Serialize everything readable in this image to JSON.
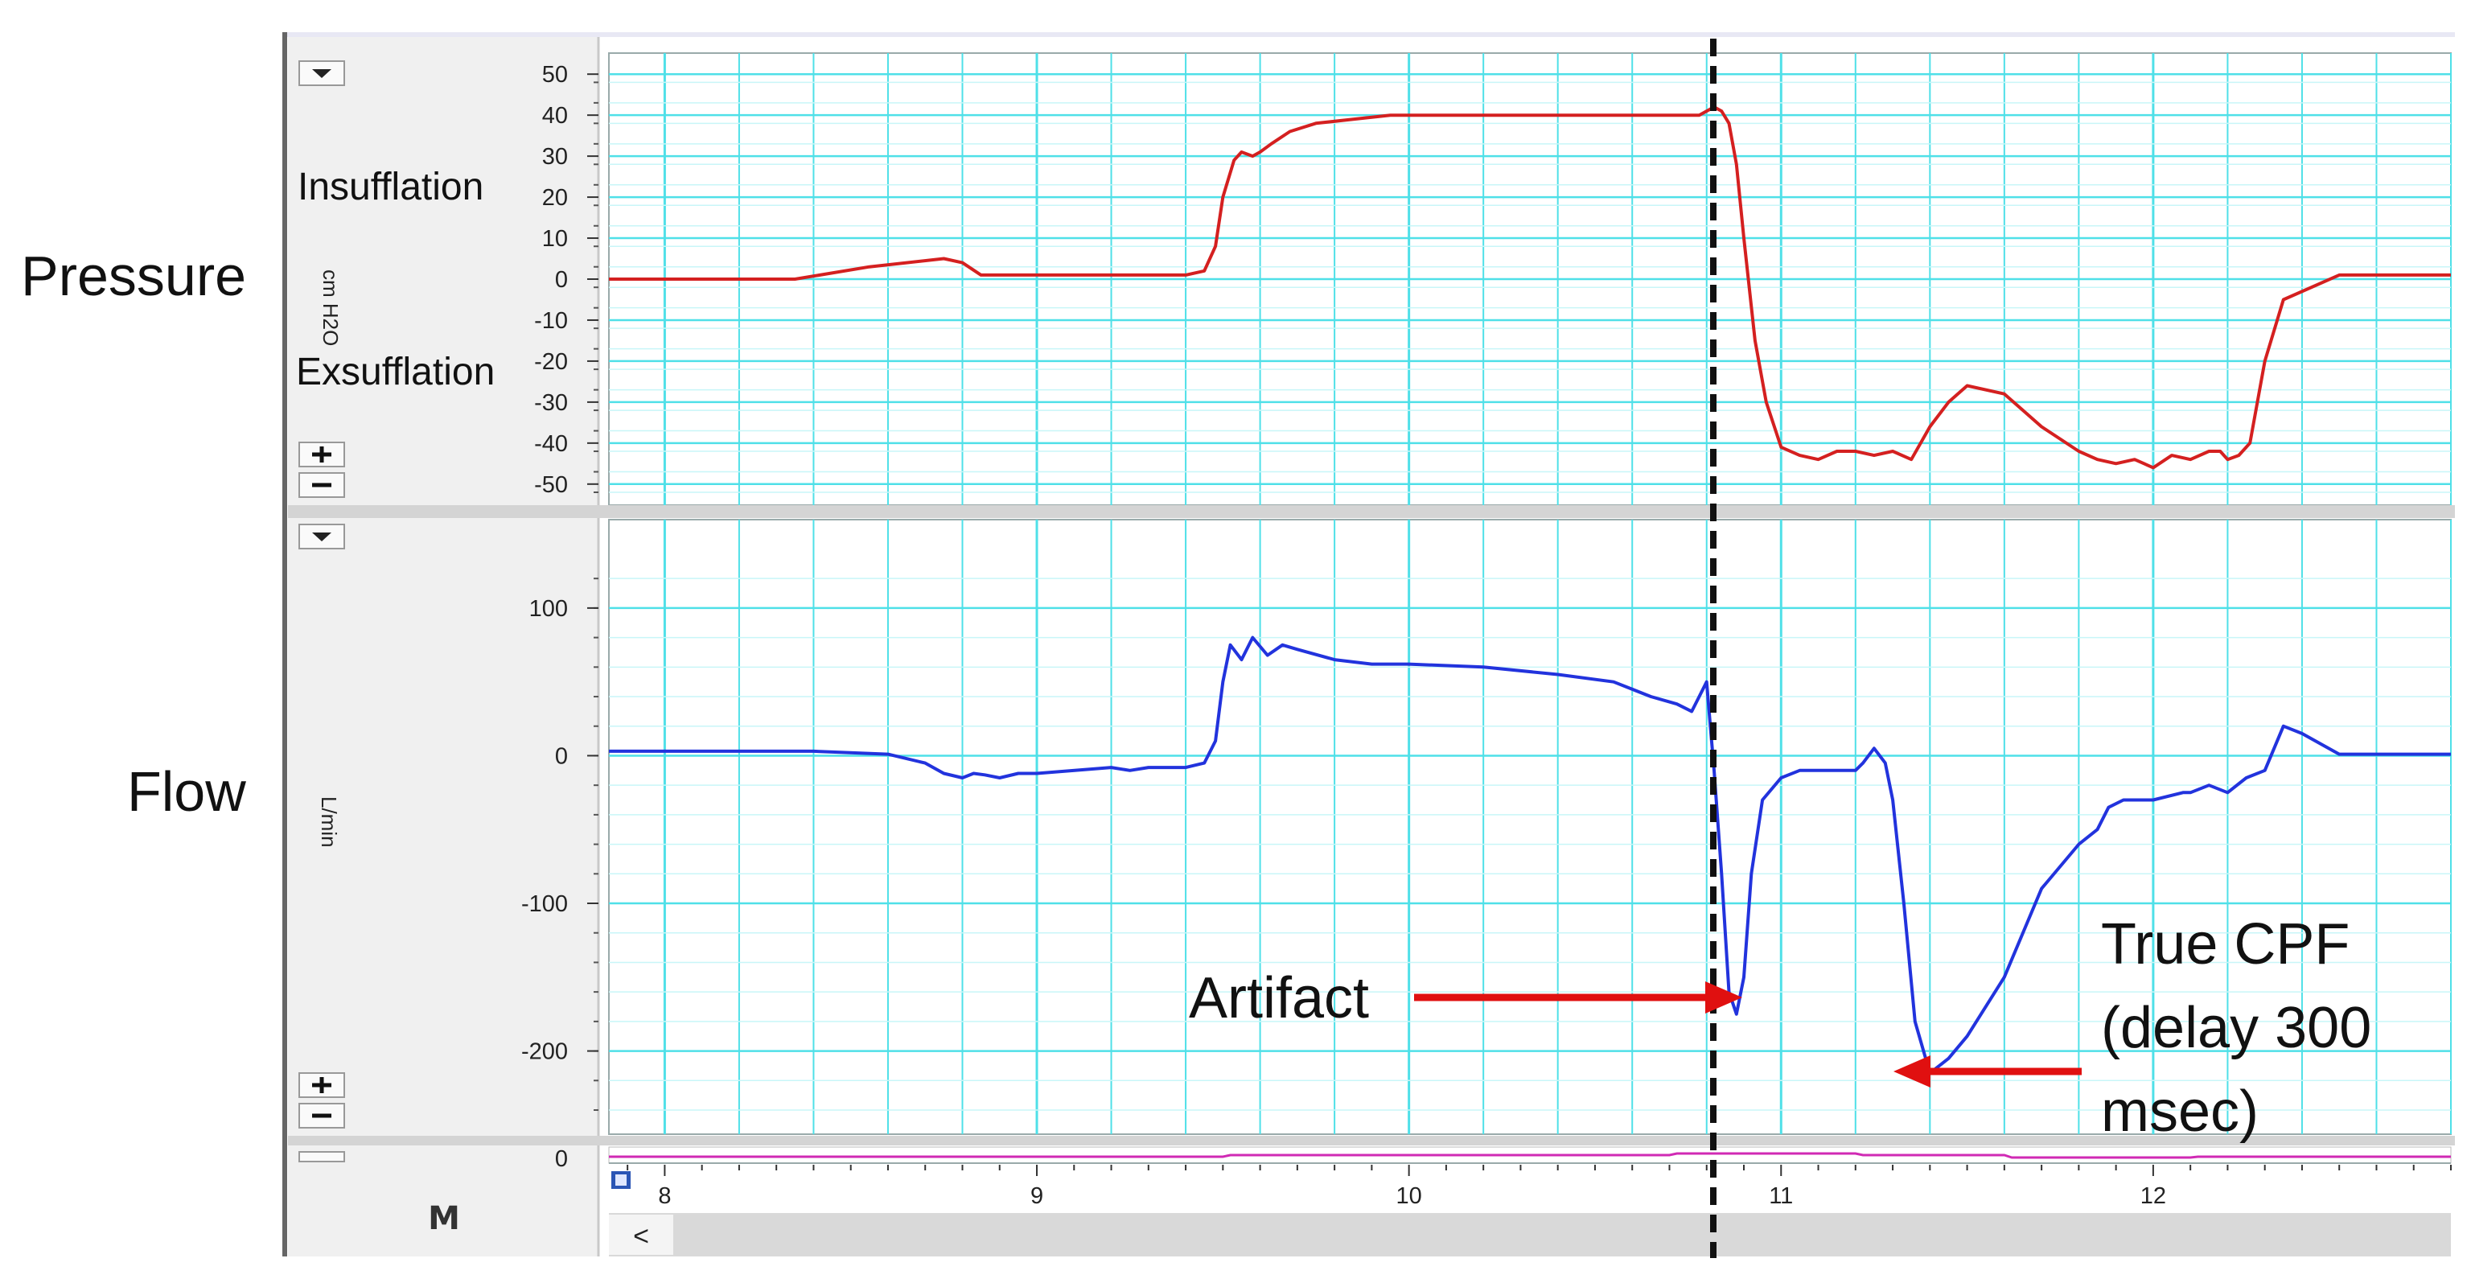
{
  "labels": {
    "pressure": "Pressure",
    "flow": "Flow",
    "insufflation": "Insufflation",
    "exsufflation": "Exsufflation",
    "pressure_unit": "cm H2O",
    "flow_unit": "L/min",
    "artifact": "Artifact",
    "true_cpf": [
      "True CPF",
      "(delay 300",
      "msec)"
    ],
    "bottom_tick": "0",
    "nav_left": "<"
  },
  "icons": {
    "dropdown": "dropdown-triangle-icon",
    "zoom_in": "plus-icon",
    "zoom_out": "minus-icon",
    "marker": "m-marker-icon",
    "channel_box": "channel-marker-icon"
  },
  "colors": {
    "grid": "#4fe0e8",
    "gridFine": "#c8f6f8",
    "pressure": "#d42020",
    "flow": "#2233dd",
    "bottom": "#d02ab4",
    "arrow": "#e01010",
    "panel": "#f0f0f0"
  },
  "chart_data": [
    {
      "type": "line",
      "name": "pressure",
      "xlabel": "",
      "ylabel": "cm H2O",
      "xlim": [
        7.85,
        12.8
      ],
      "ylim": [
        -52,
        52
      ],
      "x_ticks": [
        8,
        9,
        10,
        11,
        12
      ],
      "y_ticks": [
        50,
        40,
        30,
        20,
        10,
        0,
        -10,
        -20,
        -30,
        -40,
        -50
      ],
      "y_tick_labels": [
        "50",
        "40",
        "30",
        "20",
        "10",
        "0",
        "-10",
        "-20",
        "-30",
        "-40",
        "-50"
      ],
      "series": [
        {
          "x": [
            7.85,
            8.35,
            8.55,
            8.75,
            8.8,
            8.85,
            8.9,
            9.0,
            9.2,
            9.4,
            9.45,
            9.48,
            9.5,
            9.53,
            9.55,
            9.58,
            9.6,
            9.63,
            9.68,
            9.75,
            9.85,
            9.95,
            10.1,
            10.3,
            10.5,
            10.7,
            10.78,
            10.82,
            10.84,
            10.86,
            10.88,
            10.9,
            10.93,
            10.96,
            11.0,
            11.05,
            11.1,
            11.15,
            11.2,
            11.25,
            11.3,
            11.35,
            11.4,
            11.45,
            11.5,
            11.6,
            11.7,
            11.8,
            11.85,
            11.9,
            11.95,
            12.0,
            12.05,
            12.1,
            12.15,
            12.18,
            12.2,
            12.23,
            12.26,
            12.3,
            12.35,
            12.5,
            12.8
          ],
          "y": [
            0,
            0,
            3,
            5,
            4,
            1,
            1,
            1,
            1,
            1,
            2,
            8,
            20,
            29,
            31,
            30,
            31,
            33,
            36,
            38,
            39,
            40,
            40,
            40,
            40,
            40,
            40,
            42,
            41,
            38,
            28,
            10,
            -15,
            -30,
            -41,
            -43,
            -44,
            -42,
            -42,
            -43,
            -42,
            -44,
            -36,
            -30,
            -26,
            -28,
            -36,
            -42,
            -44,
            -45,
            -44,
            -46,
            -43,
            -44,
            -42,
            -42,
            -44,
            -43,
            -40,
            -20,
            -5,
            1,
            1
          ]
        }
      ]
    },
    {
      "type": "line",
      "name": "flow",
      "xlabel": "",
      "ylabel": "L/min",
      "xlim": [
        7.85,
        12.8
      ],
      "ylim": [
        -240,
        125
      ],
      "x_ticks": [
        8,
        9,
        10,
        11,
        12
      ],
      "y_ticks": [
        100,
        0,
        -100,
        -200
      ],
      "y_tick_labels": [
        "100",
        "0",
        "-100",
        "-200"
      ],
      "series": [
        {
          "x": [
            7.85,
            8.4,
            8.6,
            8.7,
            8.75,
            8.8,
            8.83,
            8.86,
            8.9,
            8.95,
            9.0,
            9.2,
            9.25,
            9.3,
            9.4,
            9.45,
            9.48,
            9.5,
            9.52,
            9.55,
            9.58,
            9.62,
            9.66,
            9.7,
            9.8,
            9.9,
            10.0,
            10.2,
            10.4,
            10.55,
            10.65,
            10.72,
            10.76,
            10.78,
            10.8,
            10.82,
            10.84,
            10.86,
            10.88,
            10.9,
            10.92,
            10.95,
            11.0,
            11.05,
            11.1,
            11.15,
            11.2,
            11.22,
            11.25,
            11.28,
            11.3,
            11.33,
            11.36,
            11.4,
            11.45,
            11.5,
            11.6,
            11.7,
            11.8,
            11.85,
            11.88,
            11.92,
            12.0,
            12.08,
            12.1,
            12.15,
            12.2,
            12.25,
            12.3,
            12.35,
            12.4,
            12.5,
            12.8
          ],
          "y": [
            3,
            3,
            1,
            -5,
            -12,
            -15,
            -12,
            -13,
            -15,
            -12,
            -12,
            -8,
            -10,
            -8,
            -8,
            -5,
            10,
            50,
            75,
            65,
            80,
            68,
            75,
            72,
            65,
            62,
            62,
            60,
            55,
            50,
            40,
            35,
            30,
            40,
            50,
            -10,
            -80,
            -160,
            -175,
            -150,
            -80,
            -30,
            -15,
            -10,
            -10,
            -10,
            -10,
            -5,
            5,
            -5,
            -30,
            -100,
            -180,
            -215,
            -205,
            -190,
            -150,
            -90,
            -60,
            -50,
            -35,
            -30,
            -30,
            -25,
            -25,
            -20,
            -25,
            -15,
            -10,
            20,
            15,
            1,
            1
          ]
        }
      ]
    },
    {
      "type": "line",
      "name": "bottom",
      "xlabel": "",
      "ylabel": "",
      "xlim": [
        7.85,
        12.8
      ],
      "x_ticks": [
        8,
        9,
        10,
        11,
        12
      ],
      "x_tick_labels": [
        "8",
        "9",
        "10",
        "11",
        "12"
      ],
      "y_ticks": [
        0
      ],
      "y_tick_labels": [
        "0"
      ]
    }
  ]
}
